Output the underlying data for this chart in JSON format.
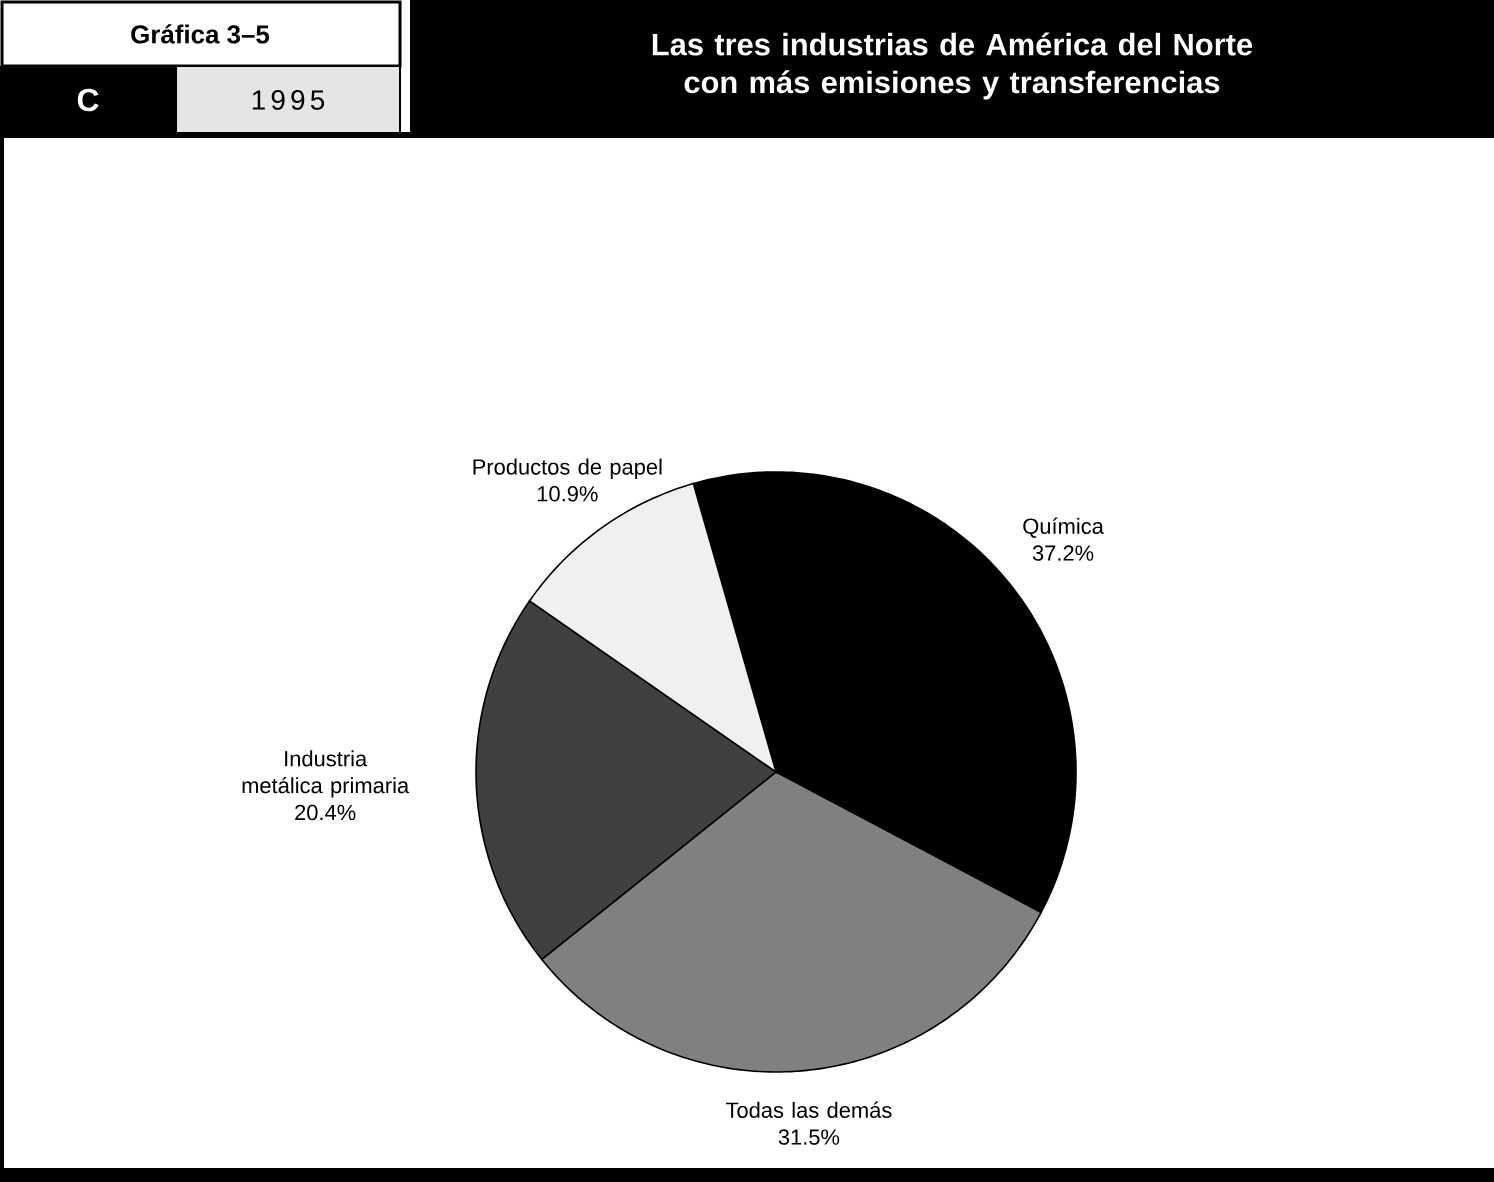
{
  "chart_data": {
    "type": "pie",
    "title": "Las tres industrias de América del Norte con más emisiones y transferencias",
    "annotations": [
      "Gráfica 3–5",
      "C",
      "1995"
    ],
    "categories": [
      "Química",
      "Todas las demás",
      "Industria metálica primaria",
      "Productos de papel"
    ],
    "values": [
      37.2,
      31.5,
      20.4,
      10.9
    ],
    "value_labels": [
      "37.2%",
      "31.5%",
      "20.4%",
      "10.9%"
    ],
    "colors": [
      "#000000",
      "#808080",
      "#404040",
      "#f0f0f0"
    ]
  }
}
